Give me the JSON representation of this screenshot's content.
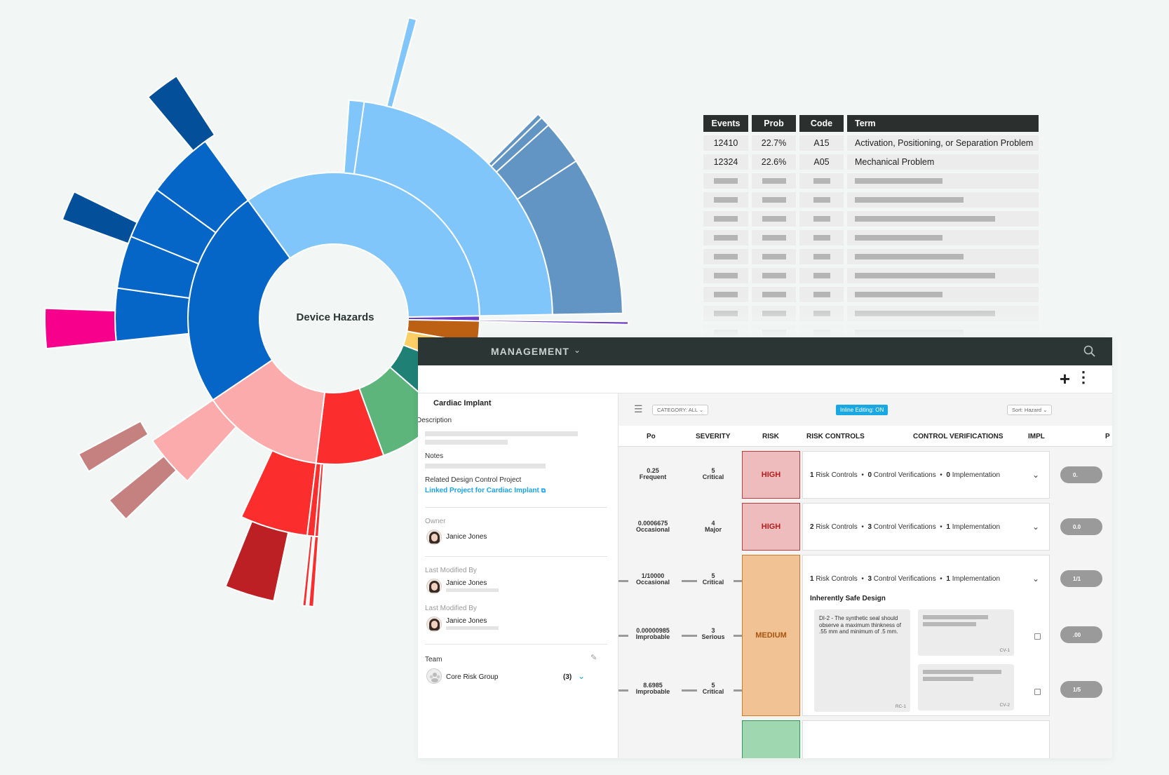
{
  "sunburst": {
    "center_label": "Device Hazards",
    "palette": {
      "dark_blue": "#0566c8",
      "navy": "#034f9a",
      "light_blue": "#80c6fb",
      "steel_blue": "#6295c3",
      "purple": "#6a3cc8",
      "brown": "#bc6014",
      "yellow": "#fccf66",
      "teal": "#1f8176",
      "green": "#5db57b",
      "red": "#fb2d2d",
      "dark_red": "#bc2025",
      "pink": "#fbabab",
      "rose": "#c58080",
      "magenta": "#f7008c"
    }
  },
  "events_table": {
    "headers": [
      "Events",
      "Prob",
      "Code",
      "Term"
    ],
    "rows": [
      [
        "12410",
        "22.7%",
        "A15",
        "Activation, Positioning, or Separation Problem"
      ],
      [
        "12324",
        "22.6%",
        "A05",
        "Mechanical Problem"
      ]
    ],
    "placeholder_row_count": 10,
    "header_color": "#2b2f2d"
  },
  "app": {
    "module_title": "MANAGEMENT",
    "topbar_color": "#2b3533",
    "panel": {
      "item_title": "Cardiac Implant",
      "description_label": "Description",
      "notes_label": "Notes",
      "related_label": "Related Design Control Project",
      "related_link": "Linked Project for Cardiac Implant",
      "owner_label": "Owner",
      "owner_name": "Janice Jones",
      "modified_label_1": "Last Modified By",
      "modified_name_1": "Janice Jones",
      "modified_label_2": "Last Modified By",
      "modified_name_2": "Janice Jones",
      "team_label": "Team",
      "team_name": "Core Risk Group",
      "team_count": "(3)"
    },
    "filters": {
      "category": "CATEGORY: All",
      "inline_editing": "Inline Editing: ON",
      "sort": "Sort: Hazard"
    },
    "columns": [
      "Po",
      "SEVERITY",
      "RISK",
      "RISK CONTROLS",
      "CONTROL VERIFICATIONS",
      "IMPL",
      "P"
    ],
    "rows": [
      {
        "po_value": "0.25",
        "po_label": "Frequent",
        "sev_value": "5",
        "sev_label": "Critical",
        "risk": "HIGH",
        "rc_count": "1",
        "rc_label": "Risk Controls",
        "cv_count": "0",
        "cv_label": "Control Verifications",
        "impl_count": "0",
        "impl_label": "Implementation",
        "pill": "0."
      },
      {
        "po_value": "0.0006675",
        "po_label": "Occasional",
        "sev_value": "4",
        "sev_label": "Major",
        "risk": "HIGH",
        "rc_count": "2",
        "rc_label": "Risk Controls",
        "cv_count": "3",
        "cv_label": "Control Verifications",
        "impl_count": "1",
        "impl_label": "Implementation",
        "pill": "0.0"
      },
      {
        "po_value": "1/10000",
        "po_label": "Occasional",
        "sev_value": "5",
        "sev_label": "Critical",
        "risk": "MEDIUM",
        "rc_count": "1",
        "rc_label": "Risk Controls",
        "cv_count": "3",
        "cv_label": "Control Verifications",
        "impl_count": "1",
        "impl_label": "Implementation",
        "pill": "1/1"
      }
    ],
    "sub_rows": [
      {
        "po_value": "0.00000985",
        "po_label": "Improbable",
        "sev_value": "3",
        "sev_label": "Serious",
        "pill": ".00"
      },
      {
        "po_value": "8.6985",
        "po_label": "Improbable",
        "sev_value": "5",
        "sev_label": "Critical",
        "pill": "1/5"
      }
    ],
    "expanded": {
      "section_title": "Inherently Safe Design",
      "risk_control_text": "DI-2 - The synthetic seal should observe a maximum thinkness of .55 mm and minimum of .5 mm.",
      "risk_control_id": "RC-1",
      "verification_ids": [
        "CV-1",
        "CV-2"
      ]
    }
  }
}
